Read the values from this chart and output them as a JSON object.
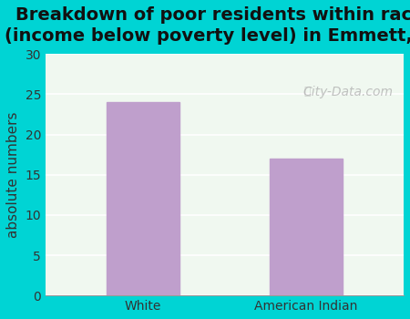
{
  "title": "Breakdown of poor residents within races\n(income below poverty level) in Emmett, KS",
  "categories": [
    "White",
    "American Indian"
  ],
  "values": [
    24,
    17
  ],
  "bar_color": "#bf9fcc",
  "ylabel": "absolute numbers",
  "ylim": [
    0,
    30
  ],
  "yticks": [
    0,
    5,
    10,
    15,
    20,
    25,
    30
  ],
  "background_outer": "#00d4d4",
  "background_plot": "#f0f8f0",
  "grid_color": "#ffffff",
  "title_fontsize": 14,
  "axis_label_fontsize": 11,
  "tick_fontsize": 10,
  "watermark": "City-Data.com"
}
